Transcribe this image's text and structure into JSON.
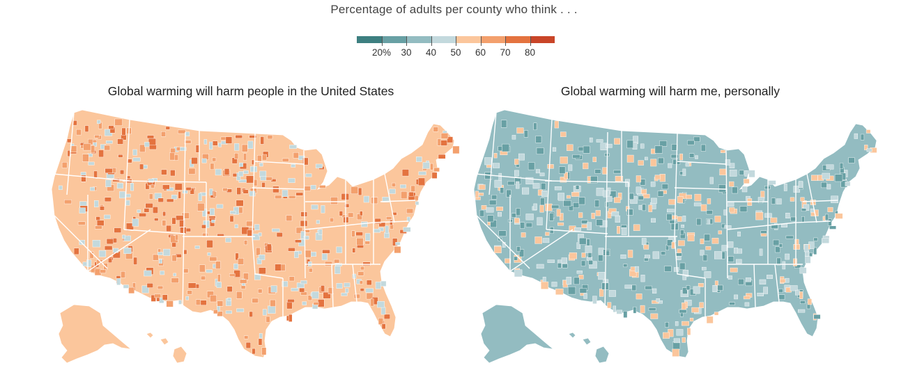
{
  "header": {
    "subtitle": "Percentage of adults per county who think . . ."
  },
  "legend": {
    "labels": [
      "20%",
      "30",
      "40",
      "50",
      "60",
      "70",
      "80"
    ],
    "colors": [
      "#3d7f80",
      "#68a0a4",
      "#93bcc1",
      "#c3d9dd",
      "#fbc69c",
      "#f3a06d",
      "#e4733f",
      "#c94528"
    ]
  },
  "maps": [
    {
      "title": "Global warming will harm people in the United States",
      "base_color": "#fbc69c",
      "accent_colors": [
        "#f3a06d",
        "#e4733f",
        "#c3d9dd"
      ]
    },
    {
      "title": "Global warming will harm me, personally",
      "base_color": "#93bcc1",
      "accent_colors": [
        "#68a0a4",
        "#c3d9dd",
        "#fbc69c"
      ]
    }
  ]
}
